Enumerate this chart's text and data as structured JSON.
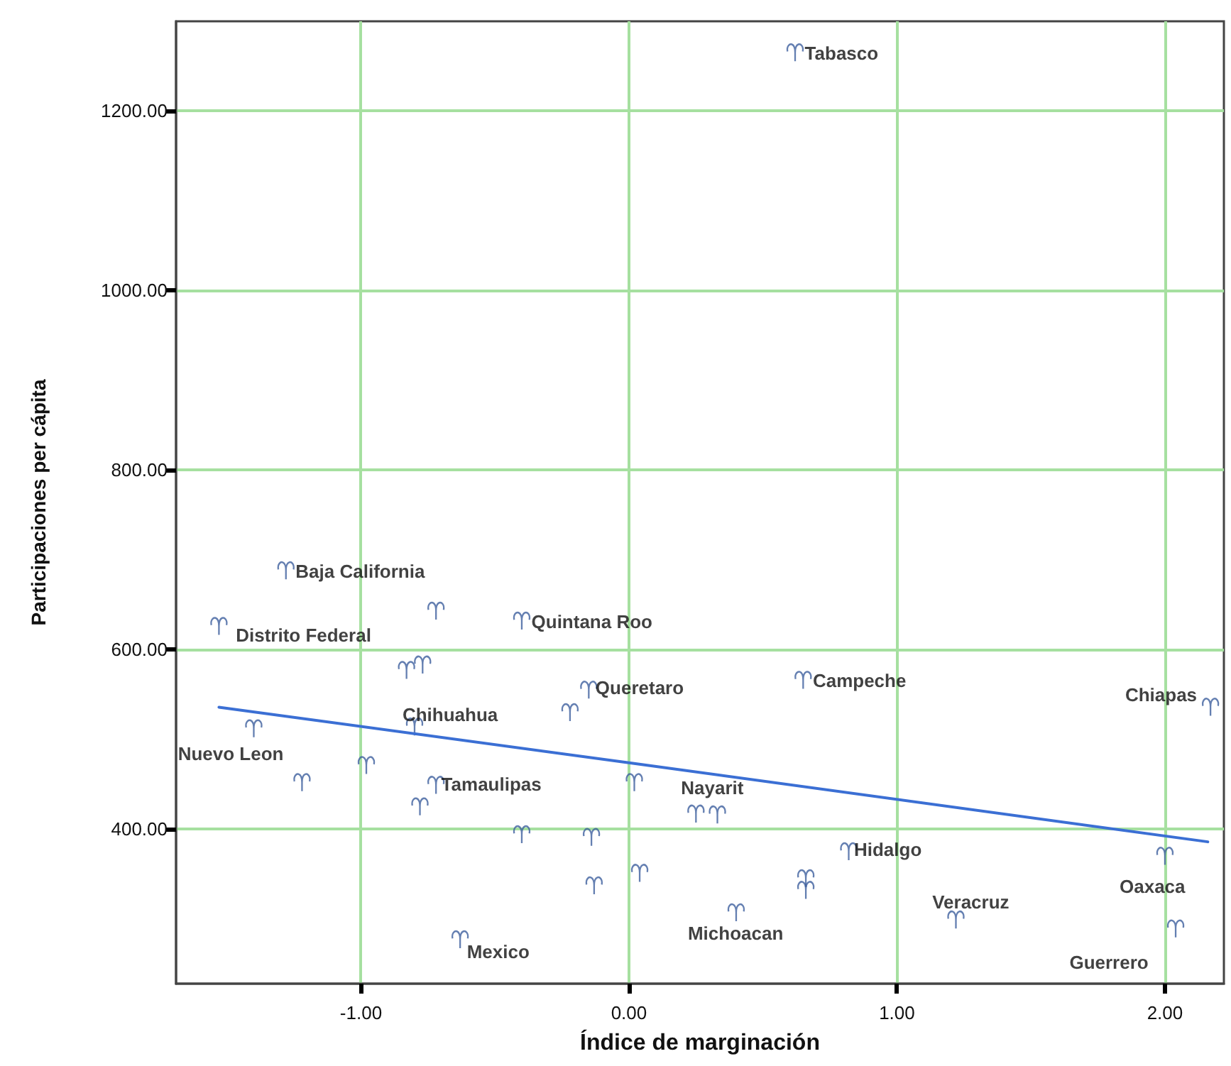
{
  "chart_data": {
    "type": "scatter",
    "xlabel": "Índice de marginación",
    "ylabel": "Participaciones per cápita",
    "xlim": [
      -1.69,
      2.22
    ],
    "ylim": [
      228,
      1300
    ],
    "xticks": [
      {
        "value": -1,
        "label": "-1.00"
      },
      {
        "value": 0,
        "label": "0.00"
      },
      {
        "value": 1,
        "label": "1.00"
      },
      {
        "value": 2,
        "label": "2.00"
      }
    ],
    "yticks": [
      {
        "value": 400,
        "label": "400.00"
      },
      {
        "value": 600,
        "label": "600.00"
      },
      {
        "value": 800,
        "label": "800.00"
      },
      {
        "value": 1000,
        "label": "1000.00"
      },
      {
        "value": 1200,
        "label": "1200.00"
      }
    ],
    "grid": true,
    "series": [
      {
        "color": "#3d5f9e",
        "value_labels": [
          "Baja California",
          "Distrito Federal",
          null,
          "Quintana Roo",
          null,
          null,
          "Nuevo Leon",
          "Chihuahua",
          null,
          null,
          "Tamaulipas",
          null,
          null,
          "Mexico",
          "Queretaro",
          null,
          "Campeche",
          null,
          "Nayarit",
          null,
          null,
          null,
          null,
          "Michoacan",
          null,
          null,
          "Hidalgo",
          "Chiapas",
          "Oaxaca",
          "Guerrero",
          "Veracruz",
          "Tabasco"
        ],
        "x": [
          -1.28,
          -1.53,
          -0.72,
          -0.4,
          -0.83,
          -0.77,
          -1.4,
          -0.8,
          -0.98,
          -1.22,
          -0.72,
          -0.78,
          -0.4,
          -0.63,
          -0.15,
          -0.22,
          0.65,
          0.02,
          0.25,
          0.33,
          -0.14,
          -0.13,
          0.04,
          0.4,
          0.66,
          0.66,
          0.82,
          2.17,
          2.0,
          2.04,
          1.22,
          0.62
        ],
        "values": [
          688,
          626,
          643,
          632,
          577,
          583,
          512,
          514,
          471,
          452,
          449,
          425,
          394,
          277,
          555,
          530,
          566,
          452,
          417,
          416,
          391,
          337,
          351,
          307,
          345,
          332,
          375,
          536,
          370,
          289,
          299,
          1265
        ]
      },
      {
        "type": "line",
        "color": "#3b6fd4",
        "x": [
          -1.53,
          0,
          2.16
        ],
        "values": [
          536,
          474,
          386
        ]
      }
    ]
  }
}
